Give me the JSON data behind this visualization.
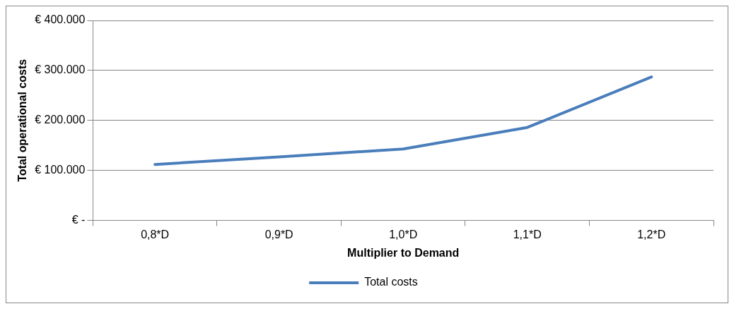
{
  "chart_data": {
    "type": "line",
    "xlabel": "Multiplier to Demand",
    "ylabel": "Total operational costs",
    "categories": [
      "0,8*D",
      "0,9*D",
      "1,0*D",
      "1,1*D",
      "1,2*D"
    ],
    "series": [
      {
        "name": "Total costs",
        "color": "#4a7ebb",
        "values": [
          112000,
          127000,
          143000,
          186000,
          287000
        ]
      }
    ],
    "ylim": [
      0,
      400000
    ],
    "yticks": [
      {
        "value": 0,
        "label": "€ -"
      },
      {
        "value": 100000,
        "label": "€ 100.000"
      },
      {
        "value": 200000,
        "label": "€ 200.000"
      },
      {
        "value": 300000,
        "label": "€ 300.000"
      },
      {
        "value": 400000,
        "label": "€ 400.000"
      }
    ],
    "grid": "y",
    "legend": "bottom",
    "marker": "none",
    "line_style": "solid"
  }
}
